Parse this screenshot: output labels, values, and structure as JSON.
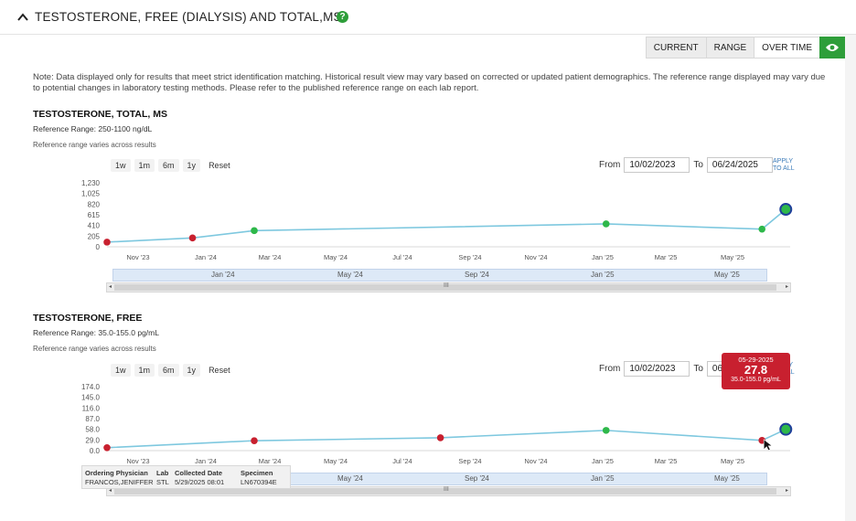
{
  "header": {
    "title": "TESTOSTERONE, FREE (DIALYSIS) AND TOTAL,MS",
    "help_glyph": "?"
  },
  "tabs": [
    {
      "label": "CURRENT",
      "active": false
    },
    {
      "label": "RANGE",
      "active": false
    },
    {
      "label": "OVER TIME",
      "active": true
    }
  ],
  "note": "Note: Data displayed only for results that meet strict identification matching. Historical result view may vary based on corrected or updated patient demographics. The reference range displayed may vary due to potential changes in laboratory testing methods. Please refer to the published reference range on each lab report.",
  "zoom": {
    "b1w": "1w",
    "b1m": "1m",
    "b6m": "6m",
    "b1y": "1y",
    "reset": "Reset"
  },
  "range": {
    "from_label": "From",
    "to_label": "To",
    "from": "10/02/2023",
    "to": "06/24/2025",
    "apply_l1": "APPLY",
    "apply_l2": "TO ALL"
  },
  "total": {
    "title": "TESTOSTERONE, TOTAL, MS",
    "ref": "Reference Range: 250-1100 ng/dL",
    "ref_note": "Reference range varies across results"
  },
  "free": {
    "title": "TESTOSTERONE, FREE",
    "ref": "Reference Range: 35.0-155.0 pg/mL",
    "ref_note": "Reference range varies across results"
  },
  "navigator_labels": [
    "Jan '24",
    "May '24",
    "Sep '24",
    "Jan '25",
    "May '25"
  ],
  "scroll_grip": "III",
  "tooltip": {
    "date": "05-29-2025",
    "value": "27.8",
    "range": "35.0-155.0 pg/mL"
  },
  "info": {
    "h_phys": "Ordering Physician",
    "h_lab": "Lab",
    "h_date": "Collected Date",
    "h_spec": "Specimen",
    "v_phys": "FRANCOS,JENIFFER",
    "v_lab": "STL",
    "v_date": "5/29/2025 08:01",
    "v_spec": "LN670394E"
  },
  "colors": {
    "line": "#7ec8df",
    "out_of_range": "#c8202f",
    "in_range": "#2eb84a",
    "selected_ring": "#1f3f9a",
    "accent": "#2e9e3a"
  },
  "chart_data": [
    {
      "type": "line",
      "name": "total",
      "yticks": [
        "1,230",
        "1,025",
        "820",
        "615",
        "410",
        "205",
        "0"
      ],
      "ylim": [
        0,
        1230
      ],
      "xticks": [
        "Nov '23",
        "Jan '24",
        "Mar '24",
        "May '24",
        "Jul '24",
        "Sep '24",
        "Nov '24",
        "Jan '25",
        "Mar '25",
        "May '25"
      ],
      "points": [
        {
          "x": "2023-10-02",
          "y": 90,
          "status": "out"
        },
        {
          "x": "2023-12-20",
          "y": 170,
          "status": "out"
        },
        {
          "x": "2024-02-15",
          "y": 310,
          "status": "in"
        },
        {
          "x": "2025-01-05",
          "y": 440,
          "status": "in"
        },
        {
          "x": "2025-05-29",
          "y": 340,
          "status": "in"
        },
        {
          "x": "2025-06-20",
          "y": 720,
          "status": "in",
          "selected": true
        }
      ]
    },
    {
      "type": "line",
      "name": "free",
      "yticks": [
        "174.0",
        "145.0",
        "116.0",
        "87.0",
        "58.0",
        "29.0",
        "0.0"
      ],
      "ylim": [
        0,
        174
      ],
      "xticks": [
        "Nov '23",
        "Jan '24",
        "Mar '24",
        "May '24",
        "Jul '24",
        "Sep '24",
        "Nov '24",
        "Jan '25",
        "Mar '25",
        "May '25"
      ],
      "points": [
        {
          "x": "2023-10-02",
          "y": 8,
          "status": "out"
        },
        {
          "x": "2024-02-15",
          "y": 27,
          "status": "out"
        },
        {
          "x": "2024-08-05",
          "y": 35,
          "status": "out"
        },
        {
          "x": "2025-01-05",
          "y": 55,
          "status": "in"
        },
        {
          "x": "2025-05-29",
          "y": 27.8,
          "status": "out"
        },
        {
          "x": "2025-06-20",
          "y": 58,
          "status": "in",
          "selected": true
        }
      ]
    }
  ]
}
